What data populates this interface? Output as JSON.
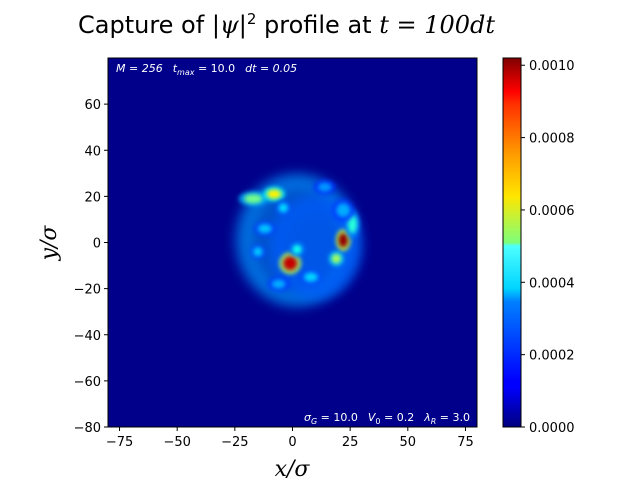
{
  "title": {
    "prefix": "Capture of |",
    "psi": "ψ",
    "mid": "|",
    "sup": "2",
    "profile": " profile at ",
    "math": "t = 100dt"
  },
  "annotations": {
    "top": {
      "M": "M = 256",
      "tmax": "t",
      "tmax_sub": "max",
      "tmax_val": " = 10.0",
      "dt": "dt = 0.05"
    },
    "bottom": {
      "sigma": "σ",
      "sigma_sub": "G",
      "sigma_val": " = 10.0",
      "V": "V",
      "V_sub": "0",
      "V_val": " = 0.2",
      "lambda": "λ",
      "lambda_sub": "R",
      "lambda_val": " = 3.0"
    }
  },
  "chart_data": {
    "type": "heatmap",
    "title": "Capture of |ψ|² profile at t = 100dt",
    "xlabel": "x/σ",
    "ylabel": "y/σ",
    "xlim": [
      -80,
      80
    ],
    "ylim": [
      -80,
      80
    ],
    "xticks": [
      -75,
      -50,
      -25,
      0,
      25,
      50,
      75
    ],
    "yticks": [
      -80,
      -60,
      -40,
      -20,
      0,
      20,
      40,
      60
    ],
    "colormap": "jet",
    "colorbar": {
      "min": 0.0,
      "max": 0.00102,
      "ticks": [
        0.0,
        0.0002,
        0.0004,
        0.0006,
        0.0008,
        0.001
      ],
      "tick_labels": [
        "0.0000",
        "0.0002",
        "0.0004",
        "0.0006",
        "0.0008",
        "0.0010"
      ]
    },
    "background_value": 1e-05,
    "features": [
      {
        "kind": "ring",
        "cx": 2,
        "cy": 1,
        "rx": 27,
        "ry": 29,
        "value": 0.00028
      },
      {
        "kind": "ring",
        "cx": 10,
        "cy": -2,
        "rx": 20,
        "ry": 22,
        "value": 0.00022
      },
      {
        "kind": "blob",
        "x": -17,
        "y": 19,
        "rx": 4,
        "ry": 2,
        "value": 0.0005
      },
      {
        "kind": "blob",
        "x": -8,
        "y": 21,
        "rx": 3,
        "ry": 2,
        "value": 0.00065
      },
      {
        "kind": "blob",
        "x": -4,
        "y": 15,
        "rx": 2,
        "ry": 2,
        "value": 0.00035
      },
      {
        "kind": "blob",
        "x": -1,
        "y": -9,
        "rx": 3,
        "ry": 3,
        "value": 0.00095
      },
      {
        "kind": "blob",
        "x": 2,
        "y": -3,
        "rx": 2,
        "ry": 2,
        "value": 0.0004
      },
      {
        "kind": "blob",
        "x": 22,
        "y": 1,
        "rx": 2,
        "ry": 3,
        "value": 0.001
      },
      {
        "kind": "blob",
        "x": 19,
        "y": -7,
        "rx": 2,
        "ry": 2,
        "value": 0.00055
      },
      {
        "kind": "blob",
        "x": 26,
        "y": 8,
        "rx": 2,
        "ry": 4,
        "value": 0.00042
      },
      {
        "kind": "blob",
        "x": 22,
        "y": 14,
        "rx": 3,
        "ry": 3,
        "value": 0.0003
      },
      {
        "kind": "blob",
        "x": -12,
        "y": 6,
        "rx": 3,
        "ry": 2,
        "value": 0.00032
      },
      {
        "kind": "blob",
        "x": -15,
        "y": -4,
        "rx": 2,
        "ry": 2,
        "value": 0.00033
      },
      {
        "kind": "blob",
        "x": -6,
        "y": -18,
        "rx": 3,
        "ry": 2,
        "value": 0.0003
      },
      {
        "kind": "blob",
        "x": 8,
        "y": -15,
        "rx": 3,
        "ry": 2,
        "value": 0.00034
      },
      {
        "kind": "blob",
        "x": 14,
        "y": 24,
        "rx": 3,
        "ry": 2,
        "value": 0.00028
      }
    ]
  }
}
